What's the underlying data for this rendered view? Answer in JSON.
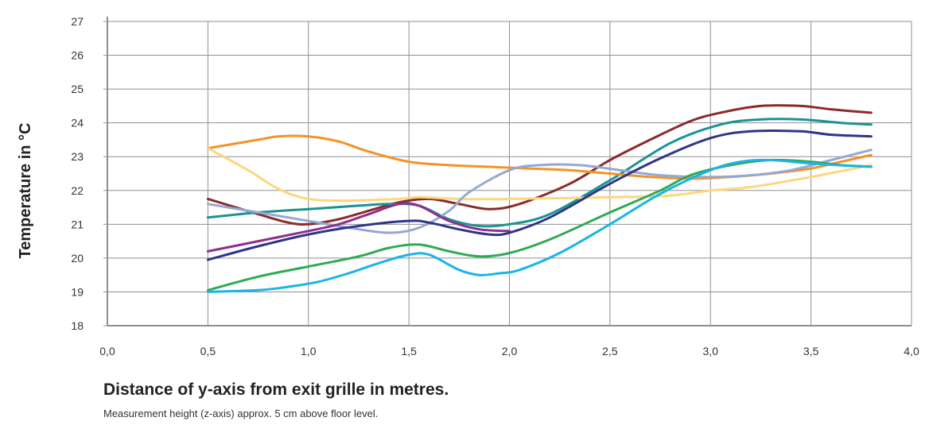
{
  "chart_data": {
    "type": "line",
    "xlabel": "Distance of y-axis from exit grille in metres.",
    "ylabel": "Temperature in  °C",
    "note": "Measurement height (z-axis) approx. 5 cm above floor level.",
    "xlim": [
      0,
      4
    ],
    "ylim": [
      18,
      27
    ],
    "x_ticks": [
      "0,0",
      "0,5",
      "1,0",
      "1,5",
      "2,0",
      "2,5",
      "3,0",
      "3,5",
      "4,0"
    ],
    "y_ticks": [
      "18",
      "19",
      "20",
      "21",
      "22",
      "23",
      "24",
      "25",
      "26",
      "27"
    ],
    "grid": true,
    "series": [
      {
        "color": "#8b2a2a",
        "points": [
          [
            0.5,
            21.75
          ],
          [
            0.75,
            21.3
          ],
          [
            0.9,
            21.05
          ],
          [
            1.0,
            21.0
          ],
          [
            1.15,
            21.15
          ],
          [
            1.3,
            21.4
          ],
          [
            1.45,
            21.65
          ],
          [
            1.6,
            21.75
          ],
          [
            1.75,
            21.6
          ],
          [
            1.9,
            21.45
          ],
          [
            2.05,
            21.6
          ],
          [
            2.3,
            22.2
          ],
          [
            2.5,
            22.9
          ],
          [
            2.7,
            23.5
          ],
          [
            2.9,
            24.05
          ],
          [
            3.05,
            24.3
          ],
          [
            3.25,
            24.5
          ],
          [
            3.45,
            24.5
          ],
          [
            3.6,
            24.4
          ],
          [
            3.8,
            24.3
          ]
        ]
      },
      {
        "color": "#1a9393",
        "points": [
          [
            0.5,
            21.2
          ],
          [
            0.75,
            21.35
          ],
          [
            1.0,
            21.45
          ],
          [
            1.25,
            21.55
          ],
          [
            1.4,
            21.6
          ],
          [
            1.55,
            21.55
          ],
          [
            1.7,
            21.15
          ],
          [
            1.85,
            20.95
          ],
          [
            2.0,
            21.0
          ],
          [
            2.2,
            21.3
          ],
          [
            2.5,
            22.3
          ],
          [
            2.8,
            23.4
          ],
          [
            3.05,
            23.95
          ],
          [
            3.25,
            24.1
          ],
          [
            3.45,
            24.1
          ],
          [
            3.65,
            24.0
          ],
          [
            3.8,
            23.95
          ]
        ]
      },
      {
        "color": "#f39325",
        "points": [
          [
            0.5,
            23.25
          ],
          [
            0.75,
            23.5
          ],
          [
            0.85,
            23.6
          ],
          [
            1.0,
            23.6
          ],
          [
            1.15,
            23.45
          ],
          [
            1.3,
            23.15
          ],
          [
            1.5,
            22.85
          ],
          [
            1.7,
            22.75
          ],
          [
            1.9,
            22.7
          ],
          [
            2.1,
            22.65
          ],
          [
            2.3,
            22.6
          ],
          [
            2.5,
            22.5
          ],
          [
            2.7,
            22.4
          ],
          [
            2.9,
            22.35
          ],
          [
            3.1,
            22.4
          ],
          [
            3.3,
            22.5
          ],
          [
            3.5,
            22.65
          ],
          [
            3.65,
            22.85
          ],
          [
            3.8,
            23.05
          ]
        ]
      },
      {
        "color": "#fcd77e",
        "points": [
          [
            0.5,
            23.25
          ],
          [
            0.7,
            22.6
          ],
          [
            0.85,
            22.05
          ],
          [
            1.0,
            21.75
          ],
          [
            1.2,
            21.7
          ],
          [
            1.45,
            21.75
          ],
          [
            1.55,
            21.8
          ],
          [
            1.75,
            21.75
          ],
          [
            2.0,
            21.75
          ],
          [
            2.5,
            21.8
          ],
          [
            2.8,
            21.85
          ],
          [
            3.0,
            22.0
          ],
          [
            3.2,
            22.1
          ],
          [
            3.5,
            22.4
          ],
          [
            3.8,
            22.75
          ]
        ]
      },
      {
        "color": "#95a8d4",
        "points": [
          [
            0.5,
            21.6
          ],
          [
            0.75,
            21.35
          ],
          [
            1.0,
            21.1
          ],
          [
            1.2,
            20.9
          ],
          [
            1.4,
            20.75
          ],
          [
            1.55,
            20.9
          ],
          [
            1.7,
            21.4
          ],
          [
            1.8,
            21.95
          ],
          [
            2.0,
            22.6
          ],
          [
            2.15,
            22.75
          ],
          [
            2.35,
            22.75
          ],
          [
            2.55,
            22.6
          ],
          [
            2.75,
            22.45
          ],
          [
            3.0,
            22.4
          ],
          [
            3.2,
            22.45
          ],
          [
            3.4,
            22.6
          ],
          [
            3.6,
            22.9
          ],
          [
            3.8,
            23.2
          ]
        ]
      },
      {
        "color": "#8e2e8e",
        "points": [
          [
            0.5,
            20.2
          ],
          [
            0.75,
            20.5
          ],
          [
            1.0,
            20.8
          ],
          [
            1.15,
            21.0
          ],
          [
            1.3,
            21.3
          ],
          [
            1.45,
            21.6
          ],
          [
            1.55,
            21.55
          ],
          [
            1.7,
            21.1
          ],
          [
            1.85,
            20.85
          ],
          [
            2.0,
            20.8
          ]
        ]
      },
      {
        "color": "#2e3587",
        "points": [
          [
            0.5,
            19.95
          ],
          [
            0.75,
            20.35
          ],
          [
            1.0,
            20.7
          ],
          [
            1.25,
            20.95
          ],
          [
            1.5,
            21.1
          ],
          [
            1.6,
            21.05
          ],
          [
            1.75,
            20.85
          ],
          [
            1.9,
            20.7
          ],
          [
            2.0,
            20.75
          ],
          [
            2.2,
            21.2
          ],
          [
            2.5,
            22.2
          ],
          [
            2.75,
            22.95
          ],
          [
            3.0,
            23.55
          ],
          [
            3.2,
            23.75
          ],
          [
            3.45,
            23.75
          ],
          [
            3.6,
            23.65
          ],
          [
            3.8,
            23.6
          ]
        ]
      },
      {
        "color": "#2eaa55",
        "points": [
          [
            0.5,
            19.05
          ],
          [
            0.75,
            19.45
          ],
          [
            1.0,
            19.75
          ],
          [
            1.25,
            20.05
          ],
          [
            1.4,
            20.3
          ],
          [
            1.55,
            20.4
          ],
          [
            1.7,
            20.2
          ],
          [
            1.85,
            20.05
          ],
          [
            2.0,
            20.15
          ],
          [
            2.2,
            20.55
          ],
          [
            2.5,
            21.35
          ],
          [
            2.75,
            22.0
          ],
          [
            2.9,
            22.45
          ],
          [
            3.1,
            22.75
          ],
          [
            3.3,
            22.9
          ],
          [
            3.5,
            22.85
          ],
          [
            3.65,
            22.75
          ],
          [
            3.8,
            22.7
          ]
        ]
      },
      {
        "color": "#1ab4e6",
        "points": [
          [
            0.5,
            19.0
          ],
          [
            0.75,
            19.05
          ],
          [
            0.9,
            19.15
          ],
          [
            1.05,
            19.3
          ],
          [
            1.2,
            19.55
          ],
          [
            1.35,
            19.85
          ],
          [
            1.5,
            20.1
          ],
          [
            1.6,
            20.1
          ],
          [
            1.75,
            19.65
          ],
          [
            1.85,
            19.5
          ],
          [
            1.95,
            19.55
          ],
          [
            2.05,
            19.65
          ],
          [
            2.25,
            20.15
          ],
          [
            2.5,
            21.0
          ],
          [
            2.75,
            21.9
          ],
          [
            3.0,
            22.6
          ],
          [
            3.15,
            22.85
          ],
          [
            3.3,
            22.9
          ],
          [
            3.5,
            22.8
          ],
          [
            3.8,
            22.7
          ]
        ]
      }
    ]
  }
}
